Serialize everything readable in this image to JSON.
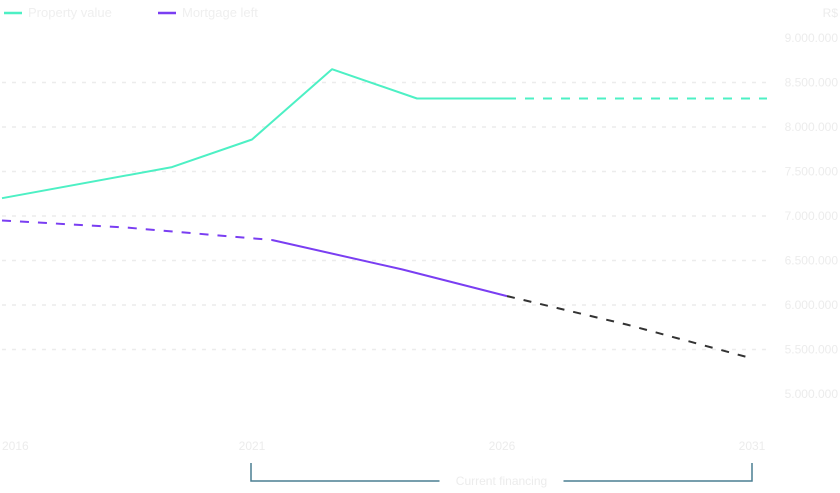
{
  "chart_data": {
    "type": "line",
    "x_ticks": [
      "2016",
      "2021",
      "2026",
      "2031"
    ],
    "y_axis_label": "R$",
    "y_ticks": [
      "9.000.000",
      "8.500.000",
      "8.000.000",
      "7.500.000",
      "7.000.000",
      "6.500.000",
      "6.000.000",
      "5.500.000",
      "5.000.000"
    ],
    "ylim": [
      5000000,
      9000000
    ],
    "grid": true,
    "legend_position": "top-left",
    "series": [
      {
        "name": "Property value",
        "color": "#4df0c4",
        "solid": [
          {
            "x": 2016.0,
            "y": 7200000
          },
          {
            "x": 2019.4,
            "y": 7550000
          },
          {
            "x": 2021.0,
            "y": 7860000
          },
          {
            "x": 2022.6,
            "y": 8650000
          },
          {
            "x": 2024.3,
            "y": 8320000
          },
          {
            "x": 2026.1,
            "y": 8320000
          }
        ],
        "projected": [
          {
            "x": 2026.1,
            "y": 8320000
          },
          {
            "x": 2031.3,
            "y": 8320000
          }
        ]
      },
      {
        "name": "Mortgage left",
        "color": "#7a3ef2",
        "projected_before": [
          {
            "x": 2016.0,
            "y": 6950000
          },
          {
            "x": 2018.5,
            "y": 6870000
          },
          {
            "x": 2021.0,
            "y": 6750000
          },
          {
            "x": 2021.4,
            "y": 6730000
          }
        ],
        "solid": [
          {
            "x": 2021.4,
            "y": 6730000
          },
          {
            "x": 2024.0,
            "y": 6400000
          },
          {
            "x": 2026.1,
            "y": 6100000
          }
        ],
        "projected_after": {
          "color": "#333333",
          "points": [
            {
              "x": 2026.1,
              "y": 6100000
            },
            {
              "x": 2028.5,
              "y": 5780000
            },
            {
              "x": 2031.0,
              "y": 5400000
            }
          ]
        }
      }
    ],
    "bracket": {
      "label": "Current financing",
      "from": 2021,
      "to": 2031,
      "color": "#4a7f92"
    }
  }
}
